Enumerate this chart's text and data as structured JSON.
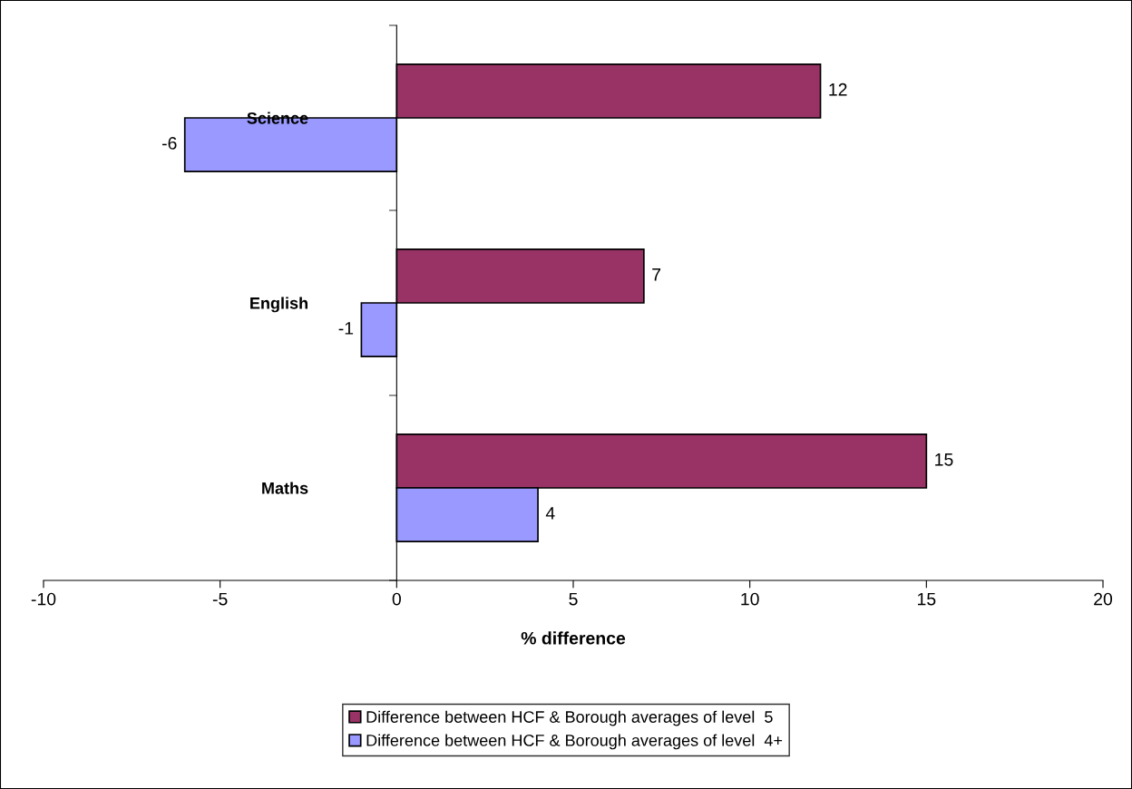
{
  "chart_data": {
    "type": "bar",
    "orientation": "horizontal",
    "categories": [
      "Science",
      "English",
      "Maths"
    ],
    "series": [
      {
        "name": "Difference between HCF & Borough averages of level  5",
        "color": "#993366",
        "values": [
          12,
          7,
          15
        ]
      },
      {
        "name": "Difference between HCF & Borough averages of level  4+",
        "color": "#9999ff",
        "values": [
          -6,
          -1,
          4
        ]
      }
    ],
    "xlabel": "% difference",
    "xlim": [
      -10,
      20
    ],
    "xticks": [
      -10,
      -5,
      0,
      5,
      10,
      15,
      20
    ],
    "data_labels": true,
    "legend": "bottom"
  }
}
